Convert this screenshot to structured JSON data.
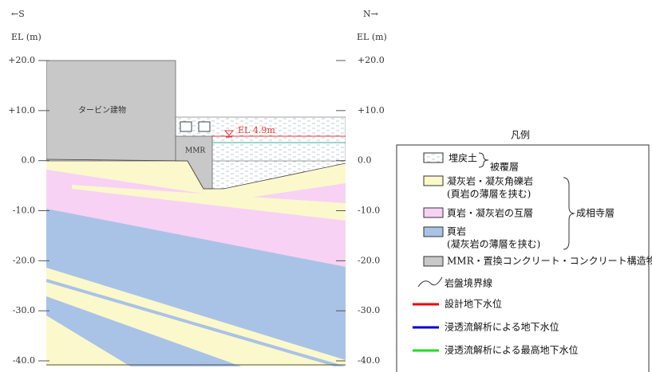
{
  "header": {
    "left": "←S",
    "right": "N→"
  },
  "axis": {
    "title": "EL (m)",
    "ylim": [
      -40,
      20
    ],
    "ticks": [
      {
        "value": 20,
        "label": "+20.0"
      },
      {
        "value": 10,
        "label": "+10.0"
      },
      {
        "value": 0,
        "label": "0.0"
      },
      {
        "value": -10,
        "label": "-10.0"
      },
      {
        "value": -20,
        "label": "-20.0"
      },
      {
        "value": -30,
        "label": "-30.0"
      },
      {
        "value": -40,
        "label": "-40.0"
      }
    ]
  },
  "section": {
    "building": "タービン建物",
    "structure": "MMR",
    "water_level": "EL 4.9m"
  },
  "legend": {
    "title": "凡例",
    "backfill": "埋戻土",
    "cover_group": "被覆層",
    "tuff": "凝灰岩・凝灰角礫岩",
    "tuff_note": "(頁岩の薄層を挟む)",
    "alternation": "頁岩・凝灰岩の互層",
    "shale": "頁岩",
    "shale_note": "(凝灰岩の薄層を挟む)",
    "formation_group": "成相寺層",
    "concrete": "MMR・置換コンクリート・コンクリート構造物",
    "rock_boundary": "岩盤境界線",
    "design_water": "設計地下水位",
    "seepage_water": "浸透流解析による地下水位",
    "max_seepage_water": "浸透流解析による最高地下水位"
  }
}
